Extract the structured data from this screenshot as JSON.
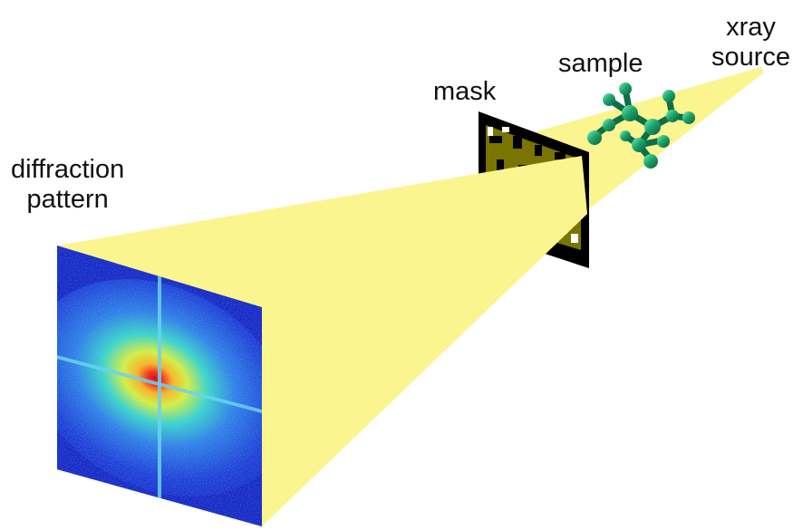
{
  "labels": {
    "diffraction_pattern": [
      "diffraction",
      "pattern"
    ],
    "mask": "mask",
    "sample": "sample",
    "xray_source": [
      "xray",
      "source"
    ]
  },
  "colors": {
    "beam": "#fbf58f",
    "mask_black": "#000000",
    "mask_transmit": "#7a7400",
    "detector_background": "#1c3ad8",
    "detector_center": "#e8140c",
    "molecule": "#1ea66f"
  },
  "icons": [
    "molecule-icon",
    "coded-mask-icon",
    "diffraction-pattern-image"
  ]
}
